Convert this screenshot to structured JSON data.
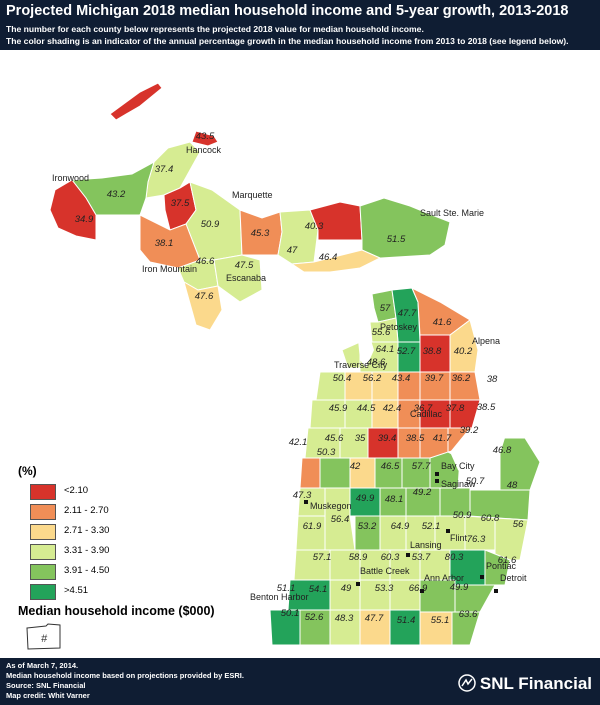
{
  "header": {
    "title": "Projected Michigan 2018 median household income and 5-year growth, 2013-2018",
    "subtitle_1": "The number for each county below represents the projected 2018 value for median household income.",
    "subtitle_2": "The color shading is an indicator of the annual percentage growth in the median household income from 2013 to 2018 (see legend below)."
  },
  "colors": {
    "lt_2_10": "#d7332b",
    "2_11_2_70": "#f08e57",
    "2_71_3_30": "#fbd98c",
    "3_31_3_90": "#d6ec92",
    "3_91_4_50": "#84c45d",
    "gt_4_51": "#23a35a",
    "header_bg": "#0f1d33",
    "water": "#ffffff"
  },
  "legend": {
    "title": "(%)",
    "items": [
      {
        "label": "<2.10",
        "color": "#d7332b"
      },
      {
        "label": "2.11 - 2.70",
        "color": "#f08e57"
      },
      {
        "label": "2.71 - 3.30",
        "color": "#fbd98c"
      },
      {
        "label": "3.31 - 3.90",
        "color": "#d6ec92"
      },
      {
        "label": "3.91 - 4.50",
        "color": "#84c45d"
      },
      {
        "label": ">4.51",
        "color": "#23a35a"
      }
    ],
    "mhi_title": "Median household income ($000)",
    "mhi_symbol": "#"
  },
  "cities": [
    "Hancock",
    "Ironwood",
    "Marquette",
    "Sault Ste. Marie",
    "Iron Mountain",
    "Escanaba",
    "Petoskey",
    "Alpena",
    "Traverse City",
    "Cadillac",
    "Bay City",
    "Saginaw",
    "Muskegon",
    "Flint",
    "Lansing",
    "Pontiac",
    "Detroit",
    "Battle Creek",
    "Ann Arbor",
    "Benton Harbor"
  ],
  "county_values": [
    "43.5",
    "37.4",
    "43.2",
    "34.9",
    "37.5",
    "50.9",
    "45.3",
    "40.3",
    "51.5",
    "38.1",
    "46.6",
    "47.5",
    "47",
    "46.4",
    "47.6",
    "57",
    "47.7",
    "41.6",
    "55.6",
    "64.1",
    "48.6",
    "52.7",
    "38.8",
    "40.2",
    "50.4",
    "56.2",
    "43.4",
    "39.7",
    "36.2",
    "38",
    "45.9",
    "44.5",
    "42.4",
    "36.7",
    "37.8",
    "38.5",
    "45.6",
    "35",
    "39.4",
    "38.5",
    "41.7",
    "39.2",
    "42.1",
    "50.3",
    "42",
    "46.5",
    "57.7",
    "46.8",
    "47.3",
    "49.9",
    "48.1",
    "49.2",
    "50.7",
    "48",
    "61.9",
    "56.4",
    "53.2",
    "64.9",
    "52.1",
    "50.9",
    "60.8",
    "56",
    "57.1",
    "58.9",
    "60.3",
    "53.7",
    "80.3",
    "76.3",
    "61.6",
    "51.1",
    "54.1",
    "49",
    "53.3",
    "66.9",
    "49.9",
    "50.1",
    "52.6",
    "48.3",
    "47.7",
    "51.4",
    "55.1",
    "63.6"
  ],
  "footer": {
    "line1": "As of March 7, 2014.",
    "line2": "Median household income based on projections provided by ESRI.",
    "line3": "Source: SNL Financial",
    "line4": "Map credit: Whit Varner",
    "brand": "SNL Financial"
  }
}
